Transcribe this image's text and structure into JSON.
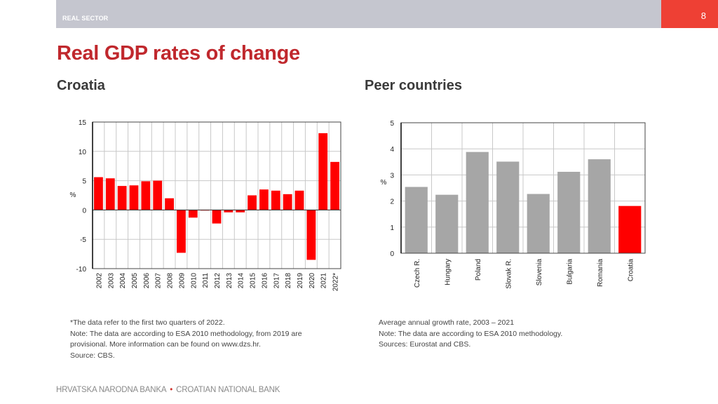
{
  "header": {
    "section": "REAL SECTOR",
    "page_number": "8"
  },
  "title": "Real GDP rates of change",
  "colors": {
    "brand_red": "#c0282d",
    "bar_red": "#ff0000",
    "bar_gray": "#a6a6a6",
    "header_gray": "#c5c6cf",
    "page_box": "#ee4034"
  },
  "left_panel": {
    "subtitle": "Croatia",
    "notes": [
      "*The data refer to the first two quarters of 2022.",
      "Note: The data are according to ESA 2010 methodology, from 2019 are",
      "provisional. More information can be found on www.dzs.hr.",
      "Source: CBS."
    ]
  },
  "right_panel": {
    "subtitle": "Peer countries",
    "notes": [
      "Average annual growth rate, 2003 – 2021",
      "Note: The data are according to ESA 2010 methodology.",
      "Sources: Eurostat and CBS."
    ]
  },
  "footer": {
    "left": "HRVATSKA NARODNA BANKA",
    "separator": "•",
    "right": "CROATIAN NATIONAL BANK"
  },
  "chart_data": [
    {
      "type": "bar",
      "title": "Croatia",
      "xlabel": "",
      "ylabel": "%",
      "ylim": [
        -10,
        15
      ],
      "yticks": [
        -10,
        -5,
        0,
        5,
        10,
        15
      ],
      "grid": true,
      "categories": [
        "2002",
        "2003",
        "2004",
        "2005",
        "2006",
        "2007",
        "2008",
        "2009",
        "2010",
        "2011",
        "2012",
        "2013",
        "2014",
        "2015",
        "2016",
        "2017",
        "2018",
        "2019",
        "2020",
        "2021",
        "2022*"
      ],
      "values": [
        5.6,
        5.4,
        4.1,
        4.2,
        4.9,
        5.0,
        2.0,
        -7.3,
        -1.3,
        -0.1,
        -2.3,
        -0.4,
        -0.4,
        2.5,
        3.5,
        3.3,
        2.7,
        3.3,
        -8.5,
        13.1,
        8.2
      ],
      "color": "#ff0000"
    },
    {
      "type": "bar",
      "title": "Peer countries",
      "xlabel": "",
      "ylabel": "%",
      "ylim": [
        0,
        5
      ],
      "yticks": [
        0,
        1,
        2,
        3,
        4,
        5
      ],
      "grid": true,
      "categories": [
        "Czech R.",
        "Hungary",
        "Poland",
        "Slovak  R.",
        "Slovenia",
        "Bulgaria",
        "Romania",
        "Croatia"
      ],
      "values": [
        2.54,
        2.24,
        3.88,
        3.51,
        2.27,
        3.12,
        3.6,
        1.81
      ],
      "colors": [
        "#a6a6a6",
        "#a6a6a6",
        "#a6a6a6",
        "#a6a6a6",
        "#a6a6a6",
        "#a6a6a6",
        "#a6a6a6",
        "#ff0000"
      ]
    }
  ]
}
